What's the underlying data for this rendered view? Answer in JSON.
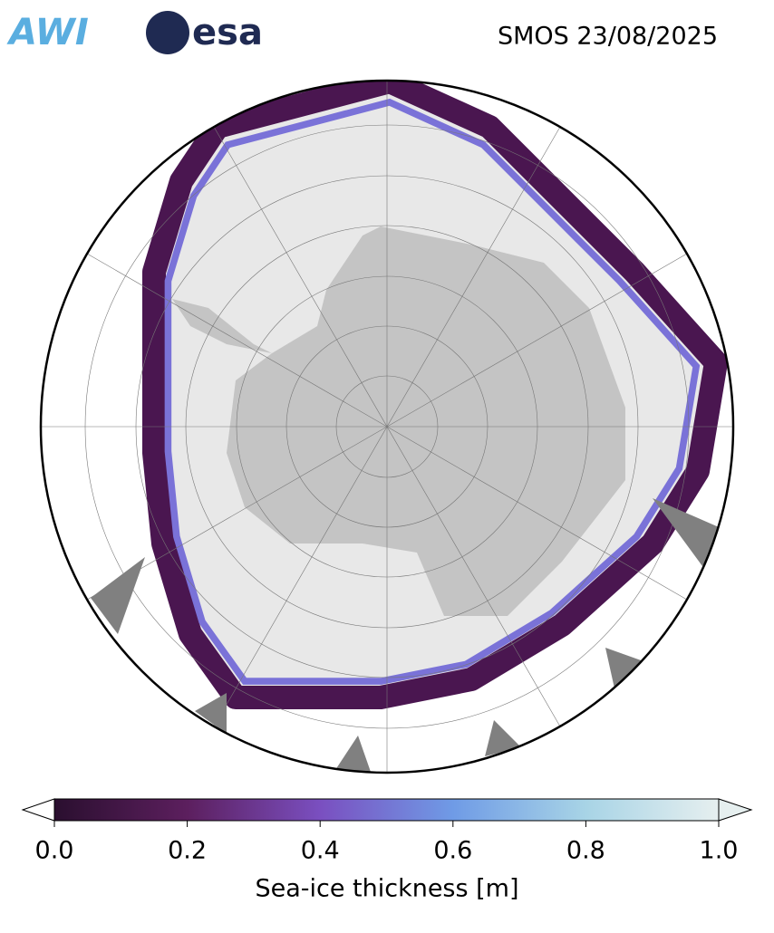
{
  "header": {
    "logos": [
      "AWI",
      "esa"
    ],
    "title": "SMOS 23/08/2025"
  },
  "colorbar": {
    "label": "Sea-ice thickness [m]",
    "lim": [
      0,
      1
    ],
    "ticks": [
      {
        "value": 0,
        "label": "0.0"
      },
      {
        "value": 0.2,
        "label": "0.2"
      },
      {
        "value": 0.4,
        "label": "0.4"
      },
      {
        "value": 0.6,
        "label": "0.6"
      },
      {
        "value": 0.8,
        "label": "0.8"
      },
      {
        "value": 1,
        "label": "1.0"
      }
    ],
    "colors": [
      "#2a0f2f",
      "#5c1f5e",
      "#7a4fc0",
      "#6f9be6",
      "#a8d4e6",
      "#e6efef"
    ]
  }
}
